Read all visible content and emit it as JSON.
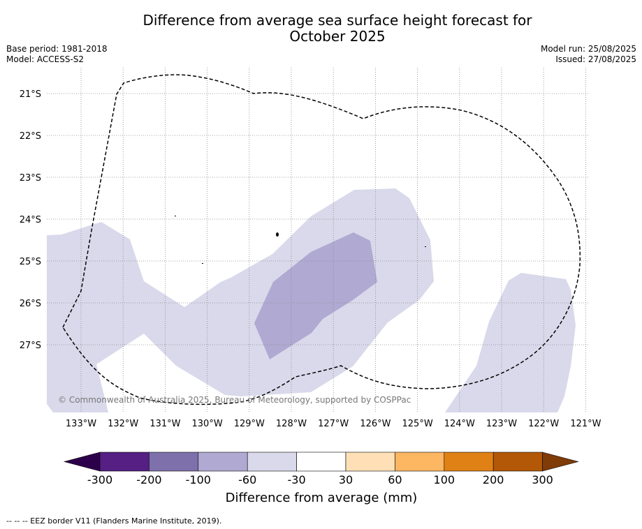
{
  "title": "Difference from average sea surface height forecast for October 2025",
  "title_line1": "Difference from average sea surface height forecast for",
  "title_line2": "October 2025",
  "base_period": "Base period: 1981-2018",
  "model": "Model: ACCESS-S2",
  "model_run": "Model run: 25/08/2025",
  "issued": "Issued: 27/08/2025",
  "copyright": "© Commonwealth of Australia 2025, Bureau of Meteorology, supported by COSPPac",
  "lat_labels": [
    "21°S",
    "22°S",
    "23°S",
    "24°S",
    "25°S",
    "26°S",
    "27°S"
  ],
  "lon_labels": [
    "133°W",
    "132°W",
    "131°W",
    "130°W",
    "129°W",
    "128°W",
    "127°W",
    "126°W",
    "125°W",
    "124°W",
    "123°W",
    "122°W",
    "121°W"
  ],
  "colorbar": {
    "title": "Difference from average (mm)",
    "tick_labels": [
      "-300",
      "-200",
      "-100",
      "-60",
      "-30",
      "30",
      "60",
      "100",
      "200",
      "300"
    ],
    "bin_colors": [
      "#551f83",
      "#7e70ab",
      "#b0a9d2",
      "#d9d9eb",
      "#ffffff",
      "#ffe0b6",
      "#fdb662",
      "#e08115",
      "#b35806"
    ],
    "under_color": "#2d004b",
    "over_color": "#7f3b08"
  },
  "footnote": "--  --  -- EEZ border V11 (Flanders Marine Institute, 2019).",
  "map_colors": {
    "light_anomaly": "#d9d9eb",
    "medium_anomaly": "#b0a9d2",
    "grid": "#888888",
    "eez_border": "#000000"
  }
}
